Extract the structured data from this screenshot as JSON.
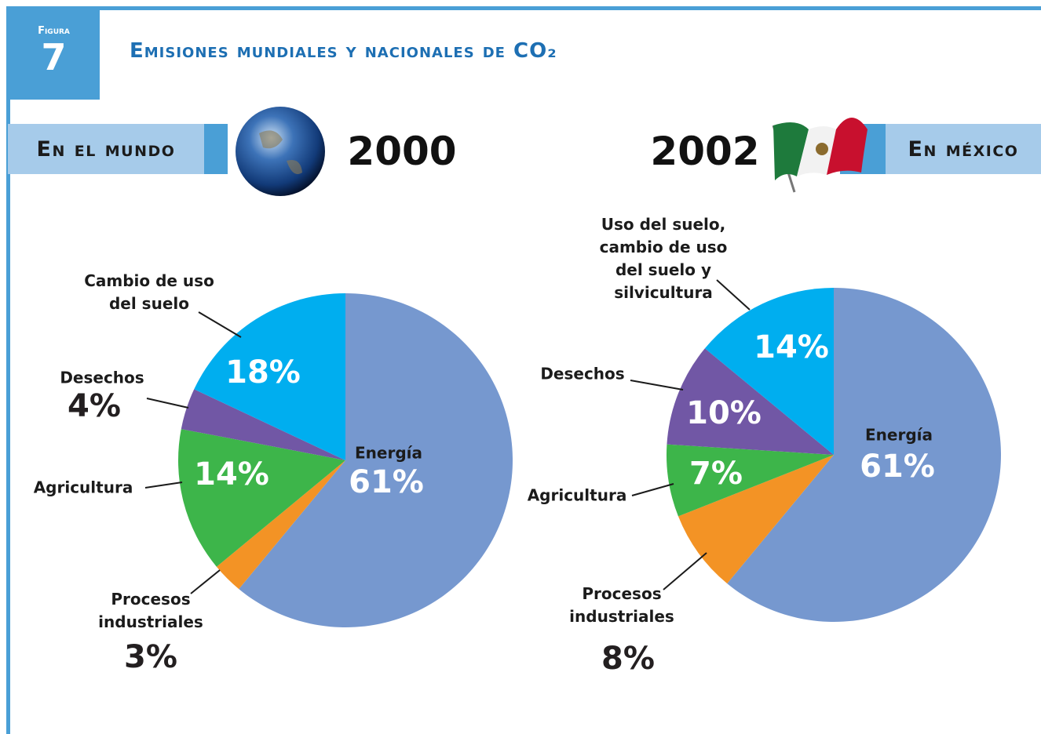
{
  "header": {
    "figure_label": "Figura",
    "figure_number": "7",
    "title": "Emisiones mundiales y nacionales de CO₂"
  },
  "chart_data": [
    {
      "type": "pie",
      "region": "En el mundo",
      "year": "2000",
      "categories": [
        "Energía",
        "Procesos industriales",
        "Agricultura",
        "Desechos",
        "Cambio de uso del suelo"
      ],
      "values": [
        61,
        3,
        14,
        4,
        18
      ],
      "value_labels": [
        "61%",
        "3%",
        "14%",
        "4%",
        "18%"
      ],
      "colors": [
        "#7698cf",
        "#f39325",
        "#3db54a",
        "#7157a5",
        "#00aeef"
      ]
    },
    {
      "type": "pie",
      "region": "En méxico",
      "year": "2002",
      "categories": [
        "Energía",
        "Procesos industriales",
        "Agricultura",
        "Desechos",
        "Uso del suelo, cambio de uso del suelo y silvicultura"
      ],
      "values": [
        61,
        8,
        7,
        10,
        14
      ],
      "value_labels": [
        "61%",
        "8%",
        "7%",
        "10%",
        "14%"
      ],
      "colors": [
        "#7698cf",
        "#f39325",
        "#3db54a",
        "#7157a5",
        "#00aeef"
      ]
    }
  ]
}
